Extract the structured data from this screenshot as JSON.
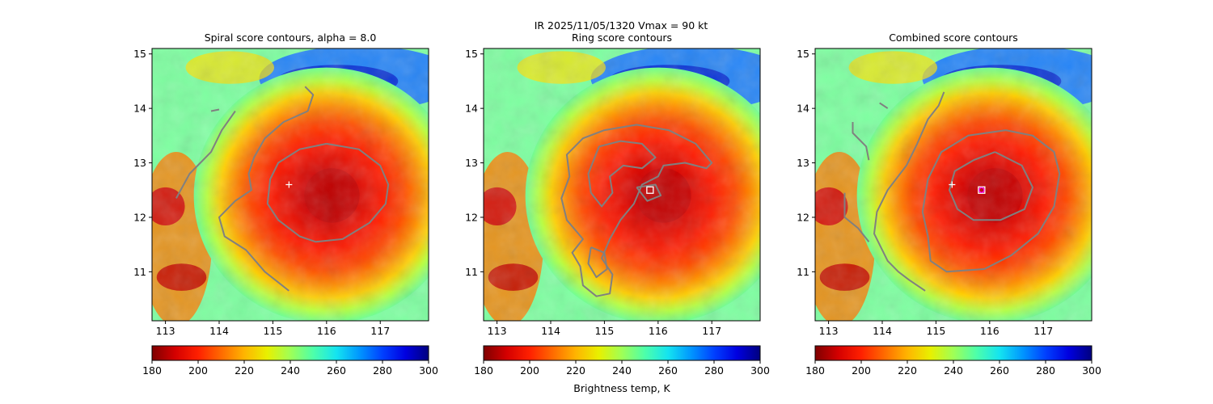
{
  "suptitle": "IR  2025/11/05/1320    Vmax = 90 kt",
  "colorbar_label": "Brightness temp, K",
  "colormap": [
    "#7f0000",
    "#d40000",
    "#ff2000",
    "#ff6a00",
    "#ffb400",
    "#e8f000",
    "#9fff56",
    "#4dffaa",
    "#14e4f0",
    "#0096ff",
    "#0040ff",
    "#0000e0",
    "#00007f"
  ],
  "colorbar_ticks": [
    180,
    200,
    220,
    240,
    260,
    280,
    300
  ],
  "colorbar_range": [
    180,
    300
  ],
  "chart_data": [
    {
      "type": "heatmap",
      "title": "Spiral score contours, alpha =  8.0",
      "xlim": [
        112.75,
        117.9
      ],
      "ylim": [
        10.1,
        15.1
      ],
      "x_ticks": [
        113,
        114,
        115,
        116,
        117
      ],
      "y_ticks": [
        11,
        12,
        13,
        14,
        15
      ],
      "value_range": [
        180,
        300
      ],
      "storm_center": [
        116.0,
        12.4
      ],
      "markers": [
        {
          "symbol": "+",
          "lon": 115.3,
          "lat": 12.6
        }
      ],
      "contours": [
        [
          [
            116.0,
            13.35
          ],
          [
            116.6,
            13.25
          ],
          [
            117.0,
            12.95
          ],
          [
            117.15,
            12.6
          ],
          [
            117.1,
            12.25
          ],
          [
            116.8,
            11.9
          ],
          [
            116.3,
            11.6
          ],
          [
            115.8,
            11.55
          ],
          [
            115.5,
            11.65
          ],
          [
            115.1,
            11.95
          ],
          [
            114.9,
            12.25
          ],
          [
            114.95,
            12.7
          ],
          [
            115.1,
            13.0
          ],
          [
            115.5,
            13.25
          ],
          [
            116.0,
            13.35
          ]
        ],
        [
          [
            115.6,
            14.4
          ],
          [
            115.75,
            14.25
          ],
          [
            115.65,
            13.95
          ],
          [
            115.2,
            13.75
          ],
          [
            114.85,
            13.45
          ],
          [
            114.65,
            13.1
          ],
          [
            114.55,
            12.8
          ],
          [
            114.6,
            12.5
          ],
          [
            114.3,
            12.3
          ],
          [
            114.0,
            12.0
          ],
          [
            114.1,
            11.65
          ],
          [
            114.5,
            11.4
          ],
          [
            114.85,
            11.0
          ],
          [
            115.3,
            10.65
          ]
        ],
        [
          [
            114.3,
            13.95
          ],
          [
            114.05,
            13.6
          ],
          [
            113.85,
            13.2
          ],
          [
            113.45,
            12.8
          ],
          [
            113.2,
            12.35
          ]
        ],
        [
          [
            114.0,
            13.98
          ],
          [
            113.85,
            13.95
          ]
        ]
      ]
    },
    {
      "type": "heatmap",
      "title": "Ring score contours",
      "xlim": [
        112.75,
        117.9
      ],
      "ylim": [
        10.1,
        15.1
      ],
      "x_ticks": [
        113,
        114,
        115,
        116,
        117
      ],
      "y_ticks": [
        11,
        12,
        13,
        14,
        15
      ],
      "value_range": [
        180,
        300
      ],
      "storm_center": [
        116.0,
        12.4
      ],
      "markers": [
        {
          "symbol": "square",
          "lon": 115.85,
          "lat": 12.5
        }
      ],
      "contours": [
        [
          [
            115.0,
            13.6
          ],
          [
            115.6,
            13.7
          ],
          [
            116.2,
            13.6
          ],
          [
            116.7,
            13.35
          ],
          [
            117.0,
            13.0
          ],
          [
            116.9,
            12.9
          ],
          [
            116.5,
            13.0
          ],
          [
            116.1,
            12.95
          ],
          [
            116.0,
            12.75
          ],
          [
            115.7,
            12.6
          ],
          [
            115.55,
            12.25
          ],
          [
            115.3,
            11.95
          ],
          [
            115.1,
            11.6
          ],
          [
            114.95,
            11.25
          ],
          [
            115.15,
            10.95
          ],
          [
            115.1,
            10.6
          ],
          [
            114.85,
            10.55
          ],
          [
            114.6,
            10.75
          ],
          [
            114.55,
            11.1
          ],
          [
            114.4,
            11.35
          ],
          [
            114.6,
            11.6
          ],
          [
            114.3,
            11.95
          ],
          [
            114.2,
            12.35
          ],
          [
            114.35,
            12.75
          ],
          [
            114.3,
            13.15
          ],
          [
            114.6,
            13.45
          ],
          [
            115.0,
            13.6
          ]
        ],
        [
          [
            114.9,
            13.3
          ],
          [
            115.3,
            13.4
          ],
          [
            115.7,
            13.35
          ],
          [
            115.95,
            13.1
          ],
          [
            115.7,
            12.9
          ],
          [
            115.35,
            12.95
          ],
          [
            115.1,
            12.75
          ],
          [
            115.15,
            12.45
          ],
          [
            114.95,
            12.2
          ],
          [
            114.75,
            12.45
          ],
          [
            114.7,
            12.8
          ],
          [
            114.9,
            13.3
          ]
        ],
        [
          [
            114.75,
            11.45
          ],
          [
            115.0,
            11.35
          ],
          [
            115.05,
            11.05
          ],
          [
            114.85,
            10.9
          ],
          [
            114.7,
            11.15
          ],
          [
            114.75,
            11.45
          ]
        ],
        [
          [
            115.6,
            12.55
          ],
          [
            115.95,
            12.6
          ],
          [
            116.05,
            12.4
          ],
          [
            115.8,
            12.3
          ],
          [
            115.6,
            12.55
          ]
        ]
      ]
    },
    {
      "type": "heatmap",
      "title": "Combined score contours",
      "xlim": [
        112.75,
        117.9
      ],
      "ylim": [
        10.1,
        15.1
      ],
      "x_ticks": [
        113,
        114,
        115,
        116,
        117
      ],
      "y_ticks": [
        11,
        12,
        13,
        14,
        15
      ],
      "value_range": [
        180,
        300
      ],
      "storm_center": [
        116.0,
        12.4
      ],
      "markers": [
        {
          "symbol": "+",
          "lon": 115.3,
          "lat": 12.6
        },
        {
          "symbol": "square",
          "lon": 115.85,
          "lat": 12.5
        },
        {
          "symbol": "circle",
          "lon": 115.85,
          "lat": 12.5
        }
      ],
      "contours": [
        [
          [
            116.3,
            13.6
          ],
          [
            116.8,
            13.5
          ],
          [
            117.2,
            13.2
          ],
          [
            117.3,
            12.8
          ],
          [
            117.2,
            12.2
          ],
          [
            116.9,
            11.7
          ],
          [
            116.4,
            11.3
          ],
          [
            115.9,
            11.05
          ],
          [
            115.2,
            11.0
          ],
          [
            114.9,
            11.2
          ],
          [
            114.85,
            11.65
          ],
          [
            114.75,
            12.1
          ],
          [
            114.85,
            12.7
          ],
          [
            115.1,
            13.2
          ],
          [
            115.6,
            13.5
          ],
          [
            116.3,
            13.6
          ]
        ],
        [
          [
            116.1,
            13.2
          ],
          [
            116.6,
            12.95
          ],
          [
            116.8,
            12.55
          ],
          [
            116.65,
            12.15
          ],
          [
            116.2,
            11.95
          ],
          [
            115.7,
            11.95
          ],
          [
            115.4,
            12.15
          ],
          [
            115.25,
            12.5
          ],
          [
            115.35,
            12.85
          ],
          [
            115.7,
            13.05
          ],
          [
            116.1,
            13.2
          ]
        ],
        [
          [
            115.15,
            14.3
          ],
          [
            115.05,
            14.05
          ],
          [
            114.85,
            13.8
          ],
          [
            114.65,
            13.35
          ],
          [
            114.45,
            12.95
          ],
          [
            114.1,
            12.5
          ],
          [
            113.9,
            12.1
          ],
          [
            113.85,
            11.7
          ],
          [
            114.1,
            11.2
          ],
          [
            114.3,
            11.0
          ],
          [
            114.5,
            10.85
          ],
          [
            114.8,
            10.65
          ]
        ],
        [
          [
            113.3,
            12.45
          ],
          [
            113.3,
            12.0
          ],
          [
            113.55,
            11.8
          ],
          [
            113.75,
            11.55
          ]
        ],
        [
          [
            113.75,
            13.05
          ],
          [
            113.7,
            13.3
          ],
          [
            113.45,
            13.55
          ],
          [
            113.45,
            13.75
          ]
        ],
        [
          [
            114.1,
            14.0
          ],
          [
            113.95,
            14.1
          ]
        ]
      ]
    }
  ]
}
